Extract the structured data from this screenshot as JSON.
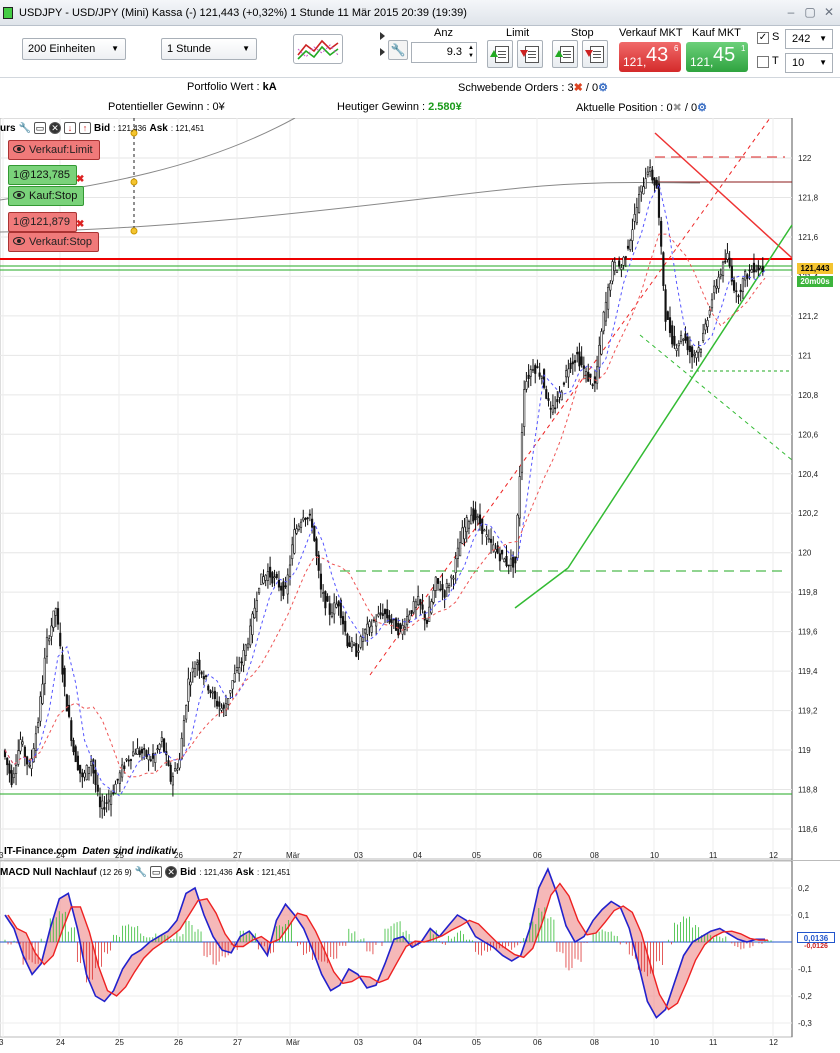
{
  "window": {
    "title": "USDJPY - USD/JPY (Mini) Kassa (-)     121,443 (+0,32%)     1 Stunde   11 Mär 2015 20:39 (19:39)"
  },
  "toolbar": {
    "units_select": "200 Einheiten",
    "interval_select": "1 Stunde",
    "anz_label": "Anz",
    "anz_value": "9.3",
    "limit_label": "Limit",
    "stop_label": "Stop",
    "sell_label": "Verkauf MKT",
    "sell_small": "121,",
    "sell_big": "43",
    "sell_sup": "6",
    "buy_label": "Kauf MKT",
    "buy_small": "121,",
    "buy_big": "45",
    "buy_sup": "1",
    "s_label": "S",
    "s_checked": "✓",
    "s_value": "242",
    "t_label": "T",
    "t_value": "10"
  },
  "portfolio": {
    "wert_label": "Portfolio Wert : ",
    "wert_value": "kA",
    "orders_label": "Schwebende Orders : 3",
    "orders_sep": " / 0",
    "gewinn_label": "Potentieller Gewinn : 0¥",
    "heute_label": "Heutiger Gewinn : ",
    "heute_value": "2.580¥",
    "position_label": "Aktuelle Position : 0",
    "position_sep": " / 0"
  },
  "overlay": {
    "kurs_label": "urs",
    "bid_label": "Bid",
    "bid_value": ": 121,436",
    "ask_label": "Ask",
    "ask_value": ": 121,451"
  },
  "orders": [
    {
      "label": "Verkauf:Limit"
    },
    {
      "qty": "1@123,785"
    },
    {
      "label": "Kauf:Stop"
    },
    {
      "qty": "1@121,879"
    },
    {
      "label": "Verkauf:Stop"
    }
  ],
  "price_tags": {
    "current": "121,443",
    "timer": "20m00s"
  },
  "brand": {
    "name": "IT-Finance.com",
    "note": "Daten sind indikativ"
  },
  "macd": {
    "title": "MACD Null Nachlauf",
    "params": "(12 26 9)",
    "bid_label": "Bid",
    "bid_value": ": 121,436",
    "ask_label": "Ask",
    "ask_value": ": 121,451",
    "tag1": "0,0136",
    "tag2": "-0,0126"
  },
  "chart_data": {
    "type": "candlestick",
    "price_axis": {
      "ticks": [
        "122",
        "121,8",
        "121,6",
        "121,4",
        "121,2",
        "121",
        "120,8",
        "120,6",
        "120,4",
        "120,2",
        "120",
        "119,8",
        "119,6",
        "119,4",
        "119,2",
        "119",
        "118,8",
        "118,6"
      ],
      "range": [
        118.5,
        122.2
      ]
    },
    "time_axis": {
      "ticks": [
        "3",
        "24",
        "25",
        "26",
        "27",
        "Mär",
        "03",
        "04",
        "05",
        "06",
        "08",
        "10",
        "11",
        "12"
      ]
    },
    "close_path": [
      119.0,
      118.85,
      119.05,
      118.9,
      119.15,
      119.55,
      119.72,
      119.3,
      119.0,
      118.85,
      118.95,
      118.7,
      118.75,
      118.85,
      118.95,
      119.0,
      118.98,
      118.95,
      119.05,
      118.85,
      118.95,
      119.35,
      119.45,
      119.35,
      119.25,
      119.2,
      119.35,
      119.45,
      119.6,
      119.85,
      119.9,
      119.85,
      119.8,
      120.1,
      120.2,
      120.15,
      119.8,
      119.7,
      119.75,
      119.55,
      119.5,
      119.6,
      119.65,
      119.7,
      119.65,
      119.6,
      119.7,
      119.75,
      119.65,
      119.85,
      119.8,
      119.9,
      120.1,
      120.2,
      120.15,
      120.05,
      120.0,
      119.95,
      119.95,
      120.85,
      120.95,
      120.9,
      120.7,
      120.8,
      120.95,
      121.0,
      120.9,
      120.85,
      121.2,
      121.45,
      121.45,
      121.6,
      121.8,
      121.95,
      121.85,
      121.2,
      121.05,
      121.1,
      121.0,
      121.05,
      121.25,
      121.4,
      121.5,
      121.3,
      121.4,
      121.45,
      121.44
    ],
    "macd_axis": {
      "ticks": [
        "0,2",
        "0,1",
        "-0,1",
        "-0,2",
        "-0,3"
      ],
      "range": [
        -0.3,
        0.27
      ]
    },
    "macd_path": [
      0.1,
      0.05,
      -0.05,
      -0.12,
      -0.08,
      0.05,
      0.16,
      0.18,
      0.05,
      -0.12,
      -0.2,
      -0.22,
      -0.18,
      -0.1,
      -0.05,
      -0.03,
      0.0,
      0.02,
      0.04,
      0.08,
      0.18,
      0.2,
      0.1,
      0.02,
      -0.03,
      -0.04,
      0.02,
      0.04,
      0.0,
      -0.05,
      0.08,
      0.14,
      0.1,
      0.05,
      -0.03,
      -0.12,
      -0.18,
      -0.16,
      -0.1,
      -0.12,
      -0.17,
      -0.16,
      -0.08,
      0.01,
      0.02,
      -0.02,
      0.0,
      0.05,
      0.02,
      0.06,
      0.1,
      0.08,
      0.02,
      0.0,
      -0.02,
      -0.05,
      -0.07,
      -0.05,
      0.05,
      0.2,
      0.27,
      0.18,
      0.06,
      0.0,
      0.02,
      0.08,
      0.12,
      0.15,
      0.13,
      0.05,
      -0.08,
      -0.22,
      -0.28,
      -0.25,
      -0.15,
      -0.05,
      0.0,
      0.02,
      0.04,
      0.05,
      0.03,
      0.01,
      0.0,
      0.01,
      0.01
    ]
  }
}
